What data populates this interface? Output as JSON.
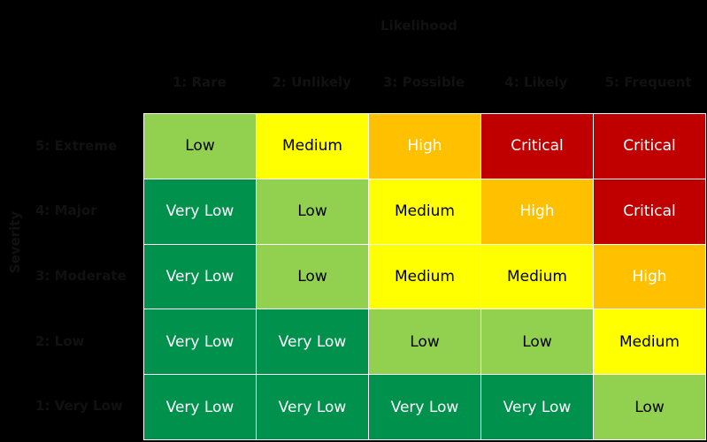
{
  "x_title": "Likelihood",
  "y_title": "Severity",
  "columns": [
    "1: Rare",
    "2: Unlikely",
    "3: Possible",
    "4: Likely",
    "5: Frequent"
  ],
  "rows": [
    "5: Extreme",
    "4: Major",
    "3: Moderate",
    "2: Low",
    "1: Very Low"
  ],
  "cells": [
    [
      {
        "label": "Low",
        "color": "#92d050",
        "text_color": "#000"
      },
      {
        "label": "Medium",
        "color": "#ffff00",
        "text_color": "#000"
      },
      {
        "label": "High",
        "color": "#ffc000",
        "text_color": "#fff"
      },
      {
        "label": "Critical",
        "color": "#c00000",
        "text_color": "#fff"
      },
      {
        "label": "Critical",
        "color": "#c00000",
        "text_color": "#fff"
      }
    ],
    [
      {
        "label": "Very Low",
        "color": "#00914c",
        "text_color": "#fff"
      },
      {
        "label": "Low",
        "color": "#92d050",
        "text_color": "#000"
      },
      {
        "label": "Medium",
        "color": "#ffff00",
        "text_color": "#000"
      },
      {
        "label": "High",
        "color": "#ffc000",
        "text_color": "#fff"
      },
      {
        "label": "Critical",
        "color": "#c00000",
        "text_color": "#fff"
      }
    ],
    [
      {
        "label": "Very Low",
        "color": "#00914c",
        "text_color": "#fff"
      },
      {
        "label": "Low",
        "color": "#92d050",
        "text_color": "#000"
      },
      {
        "label": "Medium",
        "color": "#ffff00",
        "text_color": "#000"
      },
      {
        "label": "Medium",
        "color": "#ffff00",
        "text_color": "#000"
      },
      {
        "label": "High",
        "color": "#ffc000",
        "text_color": "#fff"
      }
    ],
    [
      {
        "label": "Very Low",
        "color": "#00914c",
        "text_color": "#fff"
      },
      {
        "label": "Very Low",
        "color": "#00914c",
        "text_color": "#fff"
      },
      {
        "label": "Low",
        "color": "#92d050",
        "text_color": "#000"
      },
      {
        "label": "Low",
        "color": "#92d050",
        "text_color": "#000"
      },
      {
        "label": "Medium",
        "color": "#ffff00",
        "text_color": "#000"
      }
    ],
    [
      {
        "label": "Very Low",
        "color": "#00914c",
        "text_color": "#fff"
      },
      {
        "label": "Very Low",
        "color": "#00914c",
        "text_color": "#fff"
      },
      {
        "label": "Very Low",
        "color": "#00914c",
        "text_color": "#fff"
      },
      {
        "label": "Very Low",
        "color": "#00914c",
        "text_color": "#fff"
      },
      {
        "label": "Low",
        "color": "#92d050",
        "text_color": "#000"
      }
    ]
  ]
}
